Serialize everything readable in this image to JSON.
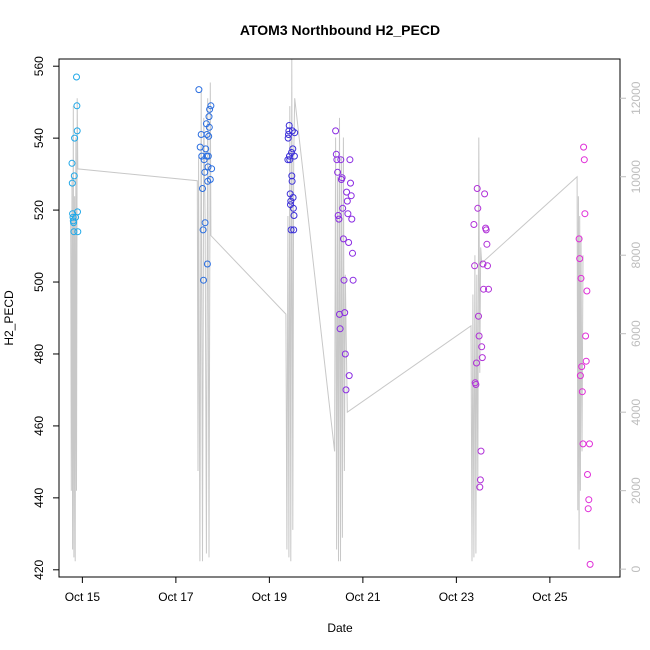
{
  "chart_data": {
    "type": "scatter",
    "title": "ATOM3 Northbound H2_PECD",
    "xlabel": "Date",
    "ylabel": "H2_PECD",
    "xlim": [
      "2023-10-14T12:00",
      "2023-10-26T12:00"
    ],
    "ylim": [
      418,
      562
    ],
    "y2lim": [
      -200,
      13000
    ],
    "x_ticks": [
      {
        "date": "2023-10-15",
        "label": "Oct 15"
      },
      {
        "date": "2023-10-17",
        "label": "Oct 17"
      },
      {
        "date": "2023-10-19",
        "label": "Oct 19"
      },
      {
        "date": "2023-10-21",
        "label": "Oct 21"
      },
      {
        "date": "2023-10-23",
        "label": "Oct 23"
      },
      {
        "date": "2023-10-25",
        "label": "Oct 25"
      }
    ],
    "y_ticks": [
      420,
      440,
      460,
      480,
      500,
      520,
      540,
      560
    ],
    "y2_ticks": [
      0,
      2000,
      4000,
      6000,
      8000,
      10000,
      12000
    ],
    "grid": false,
    "colors": {
      "axis": "#000000",
      "right_axis": "#bdbdbd",
      "line": "#c8c8c8"
    },
    "series": [
      {
        "color": "#1fa8e8",
        "points": [
          [
            "2023-10-14T18:40",
            533
          ],
          [
            "2023-10-14T18:50",
            527.5
          ],
          [
            "2023-10-14T19:00",
            519
          ],
          [
            "2023-10-14T19:10",
            518
          ],
          [
            "2023-10-14T19:20",
            517
          ],
          [
            "2023-10-14T19:30",
            516.5
          ],
          [
            "2023-10-14T19:40",
            514
          ],
          [
            "2023-10-14T19:50",
            529.5
          ],
          [
            "2023-10-14T20:00",
            540
          ],
          [
            "2023-10-14T20:30",
            518
          ],
          [
            "2023-10-14T21:00",
            557
          ],
          [
            "2023-10-14T21:10",
            549
          ],
          [
            "2023-10-14T21:20",
            542
          ],
          [
            "2023-10-14T21:30",
            519.5
          ],
          [
            "2023-10-14T21:40",
            514
          ]
        ]
      },
      {
        "color": "#2a6ee0",
        "points": [
          [
            "2023-10-17T11:50",
            553.5
          ],
          [
            "2023-10-17T12:30",
            537.5
          ],
          [
            "2023-10-17T13:00",
            541
          ],
          [
            "2023-10-17T13:20",
            535
          ],
          [
            "2023-10-17T13:40",
            526
          ],
          [
            "2023-10-17T14:00",
            514.5
          ],
          [
            "2023-10-17T14:10",
            500.5
          ],
          [
            "2023-10-17T14:30",
            534
          ],
          [
            "2023-10-17T14:50",
            530.5
          ],
          [
            "2023-10-17T15:00",
            516.5
          ],
          [
            "2023-10-17T15:20",
            537
          ],
          [
            "2023-10-17T15:40",
            544
          ],
          [
            "2023-10-17T15:50",
            535
          ],
          [
            "2023-10-17T16:00",
            541
          ],
          [
            "2023-10-17T16:10",
            505
          ],
          [
            "2023-10-17T16:20",
            528
          ],
          [
            "2023-10-17T16:30",
            532
          ],
          [
            "2023-10-17T16:40",
            535
          ],
          [
            "2023-10-17T16:50",
            540.5
          ],
          [
            "2023-10-17T17:00",
            546
          ],
          [
            "2023-10-17T17:10",
            543
          ],
          [
            "2023-10-17T17:20",
            548
          ],
          [
            "2023-10-17T17:40",
            528.5
          ],
          [
            "2023-10-17T18:00",
            549
          ],
          [
            "2023-10-17T18:20",
            531.5
          ]
        ]
      },
      {
        "color": "#3b2fd8",
        "points": [
          [
            "2023-10-19T09:30",
            534
          ],
          [
            "2023-10-19T09:40",
            540
          ],
          [
            "2023-10-19T09:50",
            541
          ],
          [
            "2023-10-19T10:00",
            542
          ],
          [
            "2023-10-19T10:10",
            543.5
          ],
          [
            "2023-10-19T10:20",
            535
          ],
          [
            "2023-10-19T10:30",
            534
          ],
          [
            "2023-10-19T10:40",
            524.5
          ],
          [
            "2023-10-19T10:50",
            521.5
          ],
          [
            "2023-10-19T11:00",
            522.5
          ],
          [
            "2023-10-19T11:10",
            514.5
          ],
          [
            "2023-10-19T11:20",
            536
          ],
          [
            "2023-10-19T11:30",
            529.5
          ],
          [
            "2023-10-19T11:40",
            528
          ],
          [
            "2023-10-19T11:50",
            542
          ],
          [
            "2023-10-19T12:00",
            537
          ],
          [
            "2023-10-19T12:10",
            523.5
          ],
          [
            "2023-10-19T12:20",
            520.5
          ],
          [
            "2023-10-19T12:30",
            514.5
          ],
          [
            "2023-10-19T12:40",
            518.5
          ],
          [
            "2023-10-19T12:50",
            535
          ],
          [
            "2023-10-19T13:00",
            541.5
          ]
        ]
      },
      {
        "color": "#8a2be2",
        "points": [
          [
            "2023-10-20T10:00",
            542
          ],
          [
            "2023-10-20T10:20",
            535.5
          ],
          [
            "2023-10-20T10:40",
            534
          ],
          [
            "2023-10-20T11:00",
            530.5
          ],
          [
            "2023-10-20T11:20",
            518.5
          ],
          [
            "2023-10-20T11:40",
            517.5
          ],
          [
            "2023-10-20T12:00",
            491
          ],
          [
            "2023-10-20T12:20",
            487
          ],
          [
            "2023-10-20T12:40",
            534
          ],
          [
            "2023-10-20T13:00",
            528.5
          ],
          [
            "2023-10-20T13:20",
            529
          ],
          [
            "2023-10-20T13:40",
            520.5
          ],
          [
            "2023-10-20T14:00",
            512
          ],
          [
            "2023-10-20T14:20",
            500.5
          ],
          [
            "2023-10-20T14:40",
            491.5
          ],
          [
            "2023-10-20T15:00",
            480
          ],
          [
            "2023-10-20T15:20",
            470
          ],
          [
            "2023-10-20T15:40",
            525
          ],
          [
            "2023-10-20T16:00",
            522.5
          ],
          [
            "2023-10-20T16:20",
            519
          ],
          [
            "2023-10-20T16:40",
            511
          ],
          [
            "2023-10-20T17:00",
            474
          ],
          [
            "2023-10-20T17:20",
            534
          ],
          [
            "2023-10-20T17:40",
            527.5
          ],
          [
            "2023-10-20T18:00",
            524
          ],
          [
            "2023-10-20T18:20",
            517.5
          ],
          [
            "2023-10-20T18:40",
            508
          ],
          [
            "2023-10-20T19:00",
            500.5
          ]
        ]
      },
      {
        "color": "#b030d8",
        "points": [
          [
            "2023-10-23T09:00",
            516
          ],
          [
            "2023-10-23T09:20",
            504.5
          ],
          [
            "2023-10-23T09:40",
            472
          ],
          [
            "2023-10-23T10:00",
            471.5
          ],
          [
            "2023-10-23T10:20",
            477.5
          ],
          [
            "2023-10-23T10:40",
            526
          ],
          [
            "2023-10-23T11:00",
            520.5
          ],
          [
            "2023-10-23T11:20",
            490.5
          ],
          [
            "2023-10-23T11:40",
            485
          ],
          [
            "2023-10-23T12:00",
            443
          ],
          [
            "2023-10-23T12:20",
            445
          ],
          [
            "2023-10-23T12:40",
            453
          ],
          [
            "2023-10-23T13:00",
            482
          ],
          [
            "2023-10-23T13:20",
            479
          ],
          [
            "2023-10-23T13:40",
            505
          ],
          [
            "2023-10-23T14:00",
            498
          ],
          [
            "2023-10-23T14:30",
            524.5
          ],
          [
            "2023-10-23T15:00",
            515
          ],
          [
            "2023-10-23T15:20",
            514.5
          ],
          [
            "2023-10-23T15:40",
            510.5
          ],
          [
            "2023-10-23T16:00",
            504.5
          ],
          [
            "2023-10-23T16:30",
            498
          ]
        ]
      },
      {
        "color": "#e02ed8",
        "points": [
          [
            "2023-10-25T15:00",
            512
          ],
          [
            "2023-10-25T15:20",
            506.5
          ],
          [
            "2023-10-25T15:40",
            474
          ],
          [
            "2023-10-25T16:00",
            501
          ],
          [
            "2023-10-25T16:20",
            476.5
          ],
          [
            "2023-10-25T16:40",
            469.5
          ],
          [
            "2023-10-25T17:00",
            455
          ],
          [
            "2023-10-25T17:20",
            537.5
          ],
          [
            "2023-10-25T17:40",
            534
          ],
          [
            "2023-10-25T18:00",
            519
          ],
          [
            "2023-10-25T18:20",
            485
          ],
          [
            "2023-10-25T18:40",
            478
          ],
          [
            "2023-10-25T19:00",
            497.5
          ],
          [
            "2023-10-25T19:20",
            446.5
          ],
          [
            "2023-10-25T19:40",
            437
          ],
          [
            "2023-10-25T20:00",
            439.5
          ],
          [
            "2023-10-25T20:20",
            455
          ],
          [
            "2023-10-25T20:40",
            421.5
          ]
        ]
      }
    ],
    "line_y2": [
      [
        "2023-10-14T18:00",
        8800
      ],
      [
        "2023-10-14T18:20",
        2000
      ],
      [
        "2023-10-14T18:40",
        10000
      ],
      [
        "2023-10-14T19:00",
        500
      ],
      [
        "2023-10-14T19:20",
        11800
      ],
      [
        "2023-10-14T19:40",
        300
      ],
      [
        "2023-10-14T20:00",
        9500
      ],
      [
        "2023-10-14T20:20",
        200
      ],
      [
        "2023-10-14T20:40",
        11000
      ],
      [
        "2023-10-14T21:00",
        2000
      ],
      [
        "2023-10-14T21:20",
        12000
      ],
      [
        "2023-10-14T21:40",
        10200
      ],
      [
        "2023-10-17T11:00",
        9900
      ],
      [
        "2023-10-17T11:20",
        2500
      ],
      [
        "2023-10-17T11:40",
        10500
      ],
      [
        "2023-10-17T12:20",
        200
      ],
      [
        "2023-10-17T13:00",
        12200
      ],
      [
        "2023-10-17T13:40",
        200
      ],
      [
        "2023-10-17T14:20",
        11500
      ],
      [
        "2023-10-17T15:00",
        9000
      ],
      [
        "2023-10-17T15:40",
        400
      ],
      [
        "2023-10-17T16:20",
        12000
      ],
      [
        "2023-10-17T17:00",
        300
      ],
      [
        "2023-10-17T17:40",
        12400
      ],
      [
        "2023-10-17T18:00",
        8500
      ],
      [
        "2023-10-19T08:30",
        6500
      ],
      [
        "2023-10-19T09:00",
        500
      ],
      [
        "2023-10-19T09:30",
        9000
      ],
      [
        "2023-10-19T10:00",
        300
      ],
      [
        "2023-10-19T10:30",
        11800
      ],
      [
        "2023-10-19T11:00",
        200
      ],
      [
        "2023-10-19T11:30",
        13000
      ],
      [
        "2023-10-19T12:00",
        1000
      ],
      [
        "2023-10-19T12:30",
        10500
      ],
      [
        "2023-10-19T13:00",
        12000
      ],
      [
        "2023-10-20T09:30",
        3000
      ],
      [
        "2023-10-20T10:00",
        11000
      ],
      [
        "2023-10-20T10:30",
        500
      ],
      [
        "2023-10-20T11:00",
        10000
      ],
      [
        "2023-10-20T11:30",
        200
      ],
      [
        "2023-10-20T12:00",
        11500
      ],
      [
        "2023-10-20T12:30",
        200
      ],
      [
        "2023-10-20T13:00",
        10500
      ],
      [
        "2023-10-20T13:30",
        800
      ],
      [
        "2023-10-20T14:00",
        11000
      ],
      [
        "2023-10-20T14:30",
        2500
      ],
      [
        "2023-10-20T15:00",
        7500
      ],
      [
        "2023-10-20T16:00",
        4000
      ],
      [
        "2023-10-23T07:30",
        6200
      ],
      [
        "2023-10-23T08:00",
        200
      ],
      [
        "2023-10-23T08:30",
        7000
      ],
      [
        "2023-10-23T09:00",
        300
      ],
      [
        "2023-10-23T09:30",
        8000
      ],
      [
        "2023-10-23T10:00",
        400
      ],
      [
        "2023-10-23T10:30",
        7500
      ],
      [
        "2023-10-23T11:00",
        2000
      ],
      [
        "2023-10-23T11:30",
        11000
      ],
      [
        "2023-10-23T12:00",
        5000
      ],
      [
        "2023-10-23T12:30",
        8200
      ],
      [
        "2023-10-23T13:00",
        7800
      ],
      [
        "2023-10-25T14:00",
        10000
      ],
      [
        "2023-10-25T14:20",
        1500
      ],
      [
        "2023-10-25T14:40",
        9500
      ],
      [
        "2023-10-25T15:00",
        500
      ],
      [
        "2023-10-25T15:20",
        9000
      ],
      [
        "2023-10-25T15:40",
        2000
      ],
      [
        "2023-10-25T16:00",
        8500
      ],
      [
        "2023-10-25T16:30",
        3000
      ],
      [
        "2023-10-25T17:00",
        8000
      ]
    ]
  }
}
